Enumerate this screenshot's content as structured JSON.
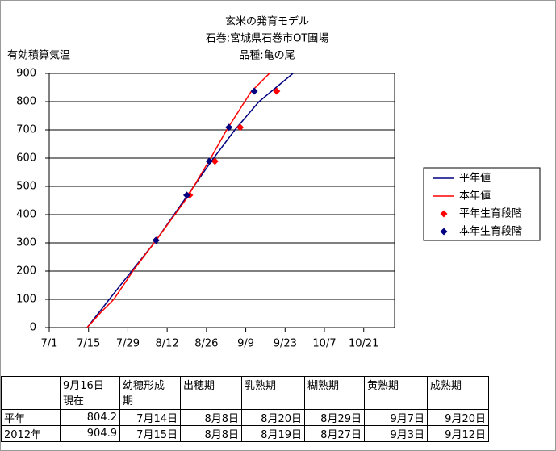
{
  "chart_data": {
    "type": "line",
    "title": [
      "玄米の発育モデル",
      "石巻:宮城県石巻市OT圃場",
      "品種:亀の尾"
    ],
    "ylabel": "有効積算気温",
    "xlim": [
      183,
      306
    ],
    "xticks": [
      {
        "value": 183,
        "label": "7/1"
      },
      {
        "value": 197,
        "label": "7/15"
      },
      {
        "value": 211,
        "label": "7/29"
      },
      {
        "value": 225,
        "label": "8/12"
      },
      {
        "value": 239,
        "label": "8/26"
      },
      {
        "value": 253,
        "label": "9/9"
      },
      {
        "value": 267,
        "label": "9/23"
      },
      {
        "value": 281,
        "label": "10/7"
      },
      {
        "value": 295,
        "label": "10/21"
      }
    ],
    "ylim": [
      0,
      900
    ],
    "yticks": [
      0,
      100,
      200,
      300,
      400,
      500,
      600,
      700,
      800,
      900
    ],
    "grid": true,
    "legend": "right",
    "series": [
      {
        "name": "平年値",
        "color": "#000080",
        "style": "line",
        "x": [
          196.5,
          208.9,
          220.4,
          231.9,
          240.5,
          249.1,
          257.7,
          269.8
        ],
        "values": [
          0,
          157,
          300,
          463,
          586,
          700,
          800,
          900
        ]
      },
      {
        "name": "本年値",
        "color": "#ff0000",
        "style": "line",
        "x": [
          196.5,
          201.7,
          206,
          213.2,
          220.4,
          231.9,
          240.5,
          246.2,
          254.8,
          261.4
        ],
        "values": [
          0,
          57,
          100,
          206,
          300,
          457,
          600,
          700,
          834,
          900
        ]
      },
      {
        "name": "平年生育段階",
        "color": "#ff0000",
        "style": "marker",
        "x": [
          221,
          233,
          242,
          251,
          264
        ],
        "values": [
          309,
          469,
          589,
          709,
          837
        ]
      },
      {
        "name": "本年生育段階",
        "color": "#000080",
        "style": "marker",
        "x": [
          221,
          232,
          240,
          247,
          256
        ],
        "values": [
          309,
          469,
          589,
          709,
          837
        ]
      }
    ]
  },
  "table": {
    "header": [
      "9月16日\n現在",
      "幼穂形成\n期",
      "出穂期",
      "乳熟期",
      "糊熟期",
      "黄熟期",
      "成熟期"
    ],
    "rows": [
      {
        "label": "平年",
        "cells": [
          "804.2",
          "7月14日",
          "8月8日",
          "8月20日",
          "8月29日",
          "9月7日",
          "9月20日"
        ]
      },
      {
        "label": "2012年",
        "cells": [
          "904.9",
          "7月15日",
          "8月8日",
          "8月19日",
          "8月27日",
          "9月3日",
          "9月12日"
        ]
      }
    ]
  }
}
